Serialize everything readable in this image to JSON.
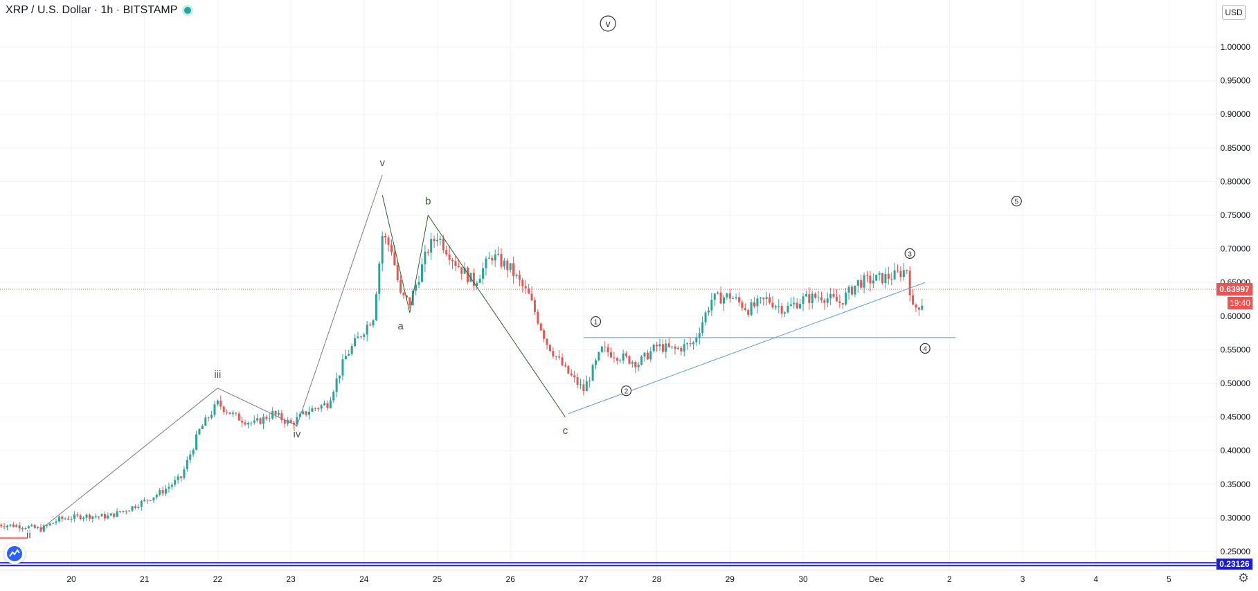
{
  "header": {
    "symbol": "XRP / U.S. Dollar",
    "interval": "1h",
    "exchange": "BITSTAMP",
    "separator": "·"
  },
  "currency_button": "USD",
  "colors": {
    "up": "#26a69a",
    "down": "#ef5350",
    "trendline": "#5b9bd5",
    "wave_line": "#787b86",
    "wave_abc": "#2e5f2e",
    "price_line": "#ef5350",
    "bottom_line": "#1a1adb"
  },
  "chart_data": {
    "type": "candlestick",
    "title": "XRP / U.S. Dollar · 1h · BITSTAMP",
    "x_ticks": [
      "20",
      "21",
      "22",
      "23",
      "24",
      "25",
      "26",
      "27",
      "28",
      "29",
      "30",
      "Dec",
      "2",
      "3",
      "4",
      "5"
    ],
    "y_ticks": [
      "1.00000",
      "0.95000",
      "0.90000",
      "0.85000",
      "0.80000",
      "0.75000",
      "0.70000",
      "0.65000",
      "0.60000",
      "0.55000",
      "0.50000",
      "0.45000",
      "0.40000",
      "0.35000",
      "0.30000",
      "0.25000"
    ],
    "ylim": [
      0.23,
      1.05
    ],
    "xlim": [
      "Nov 19 00:00",
      "Dec 5 12:00"
    ],
    "last_price": "0.63997",
    "countdown": "19:40",
    "bottom_level": "0.23126",
    "price_path": [
      [
        "11-19 00:00",
        0.29
      ],
      [
        "11-19 08:00",
        0.288
      ],
      [
        "11-19 14:00",
        0.283
      ],
      [
        "11-19 20:00",
        0.298
      ],
      [
        "11-20 04:00",
        0.303
      ],
      [
        "11-20 12:00",
        0.302
      ],
      [
        "11-20 18:00",
        0.312
      ],
      [
        "11-21 00:00",
        0.325
      ],
      [
        "11-21 06:00",
        0.34
      ],
      [
        "11-21 12:00",
        0.36
      ],
      [
        "11-21 18:00",
        0.43
      ],
      [
        "11-22 00:00",
        0.47
      ],
      [
        "11-22 06:00",
        0.45
      ],
      [
        "11-22 12:00",
        0.44
      ],
      [
        "11-22 18:00",
        0.455
      ],
      [
        "11-23 00:00",
        0.44
      ],
      [
        "11-23 06:00",
        0.46
      ],
      [
        "11-23 12:00",
        0.47
      ],
      [
        "11-23 18:00",
        0.54
      ],
      [
        "11-24 00:00",
        0.58
      ],
      [
        "11-24 03:00",
        0.6
      ],
      [
        "11-24 06:00",
        0.72
      ],
      [
        "11-24 09:00",
        0.7
      ],
      [
        "11-24 12:00",
        0.63
      ],
      [
        "11-24 15:00",
        0.62
      ],
      [
        "11-24 21:00",
        0.7
      ],
      [
        "11-25 00:00",
        0.72
      ],
      [
        "11-25 06:00",
        0.68
      ],
      [
        "11-25 12:00",
        0.65
      ],
      [
        "11-25 18:00",
        0.69
      ],
      [
        "11-26 00:00",
        0.67
      ],
      [
        "11-26 06:00",
        0.63
      ],
      [
        "11-26 12:00",
        0.56
      ],
      [
        "11-26 18:00",
        0.52
      ],
      [
        "11-27 00:00",
        0.49
      ],
      [
        "11-27 06:00",
        0.55
      ],
      [
        "11-27 12:00",
        0.54
      ],
      [
        "11-27 18:00",
        0.53
      ],
      [
        "11-28 00:00",
        0.555
      ],
      [
        "11-28 06:00",
        0.55
      ],
      [
        "11-28 12:00",
        0.56
      ],
      [
        "11-28 18:00",
        0.625
      ],
      [
        "11-29 00:00",
        0.63
      ],
      [
        "11-29 06:00",
        0.61
      ],
      [
        "11-29 12:00",
        0.625
      ],
      [
        "11-29 18:00",
        0.61
      ],
      [
        "11-30 00:00",
        0.625
      ],
      [
        "11-30 06:00",
        0.63
      ],
      [
        "11-30 12:00",
        0.62
      ],
      [
        "11-30 18:00",
        0.65
      ],
      [
        "12-01 00:00",
        0.655
      ],
      [
        "12-01 06:00",
        0.66
      ],
      [
        "12-01 10:00",
        0.67
      ],
      [
        "12-01 12:00",
        0.61
      ],
      [
        "12-01 15:00",
        0.62
      ],
      [
        "12-01 16:00",
        0.64
      ]
    ],
    "annotations": {
      "wave_labels": [
        {
          "text": "iii",
          "x": "11-22 00:00",
          "y": 0.508
        },
        {
          "text": "iv",
          "x": "11-23 02:00",
          "y": 0.42
        },
        {
          "text": "v",
          "x": "11-24 06:00",
          "y": 0.823
        },
        {
          "text": "ii",
          "x": "11-19 10:00",
          "y": 0.27
        }
      ],
      "abc_labels": [
        {
          "text": "a",
          "x": "11-24 12:00",
          "y": 0.58
        },
        {
          "text": "b",
          "x": "11-24 21:00",
          "y": 0.766
        },
        {
          "text": "c",
          "x": "11-26 18:00",
          "y": 0.425
        }
      ],
      "circled_labels": [
        {
          "text": "v",
          "x": "11-27 08:00",
          "y": 1.035
        },
        {
          "text": "1",
          "x": "11-27 04:00",
          "y": 0.592
        },
        {
          "text": "2",
          "x": "11-27 14:00",
          "y": 0.489
        },
        {
          "text": "3",
          "x": "12-01 11:00",
          "y": 0.693
        },
        {
          "text": "4",
          "x": "12-01 16:00",
          "y": 0.552
        },
        {
          "text": "5",
          "x": "12-02 22:00",
          "y": 0.771
        }
      ]
    }
  }
}
